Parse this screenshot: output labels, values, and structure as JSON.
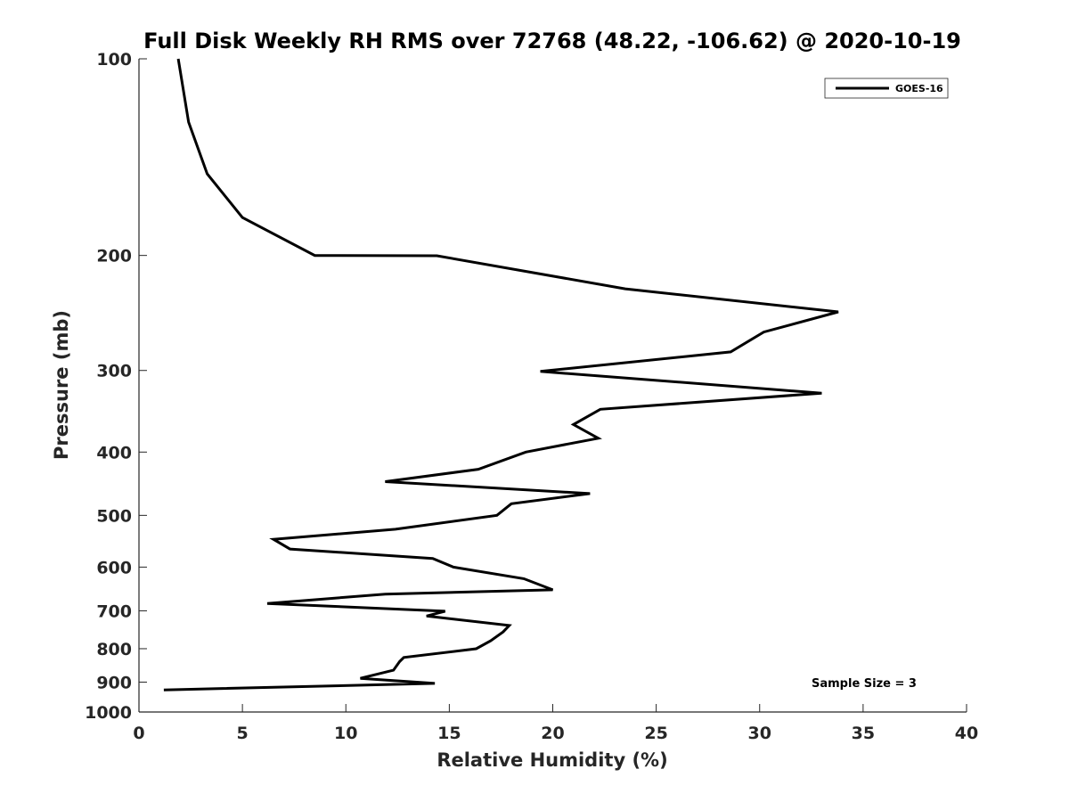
{
  "chart_data": {
    "type": "line",
    "title": "Full Disk Weekly RH RMS over 72768 (48.22, -106.62) @ 2020-10-19",
    "xlabel": "Relative Humidity (%)",
    "ylabel": "Pressure (mb)",
    "xlim": [
      0,
      40
    ],
    "ylim": [
      100,
      1000
    ],
    "y_scale": "log",
    "y_reversed": true,
    "x_ticks": [
      0,
      5,
      10,
      15,
      20,
      25,
      30,
      35,
      40
    ],
    "y_ticks": [
      100,
      200,
      300,
      400,
      500,
      600,
      700,
      800,
      900,
      1000
    ],
    "grid": false,
    "legend_position": "top-right",
    "annotation": "Sample Size = 3",
    "series": [
      {
        "name": "GOES-16",
        "color": "#000000",
        "points": [
          [
            1.9,
            100
          ],
          [
            2.4,
            125
          ],
          [
            3.3,
            150
          ],
          [
            5.0,
            175
          ],
          [
            8.5,
            200
          ],
          [
            14.4,
            200.2
          ],
          [
            23.5,
            225
          ],
          [
            33.8,
            244
          ],
          [
            30.2,
            262
          ],
          [
            28.6,
            281
          ],
          [
            19.4,
            301
          ],
          [
            33.0,
            325
          ],
          [
            22.3,
            344
          ],
          [
            21.0,
            363
          ],
          [
            22.2,
            381
          ],
          [
            18.7,
            400
          ],
          [
            16.4,
            425
          ],
          [
            11.9,
            444
          ],
          [
            21.8,
            463
          ],
          [
            18.0,
            480
          ],
          [
            17.3,
            500
          ],
          [
            12.4,
            525
          ],
          [
            6.5,
            544
          ],
          [
            7.3,
            563
          ],
          [
            14.2,
            582
          ],
          [
            15.2,
            600
          ],
          [
            18.6,
            625
          ],
          [
            20.0,
            650
          ],
          [
            11.9,
            660
          ],
          [
            6.2,
            682
          ],
          [
            14.8,
            701
          ],
          [
            13.9,
            713
          ],
          [
            17.9,
            737
          ],
          [
            17.6,
            754
          ],
          [
            17.0,
            778
          ],
          [
            16.3,
            800
          ],
          [
            12.8,
            825
          ],
          [
            12.6,
            837
          ],
          [
            12.3,
            863
          ],
          [
            10.7,
            888
          ],
          [
            14.3,
            904
          ],
          [
            1.2,
            925
          ]
        ]
      }
    ]
  }
}
